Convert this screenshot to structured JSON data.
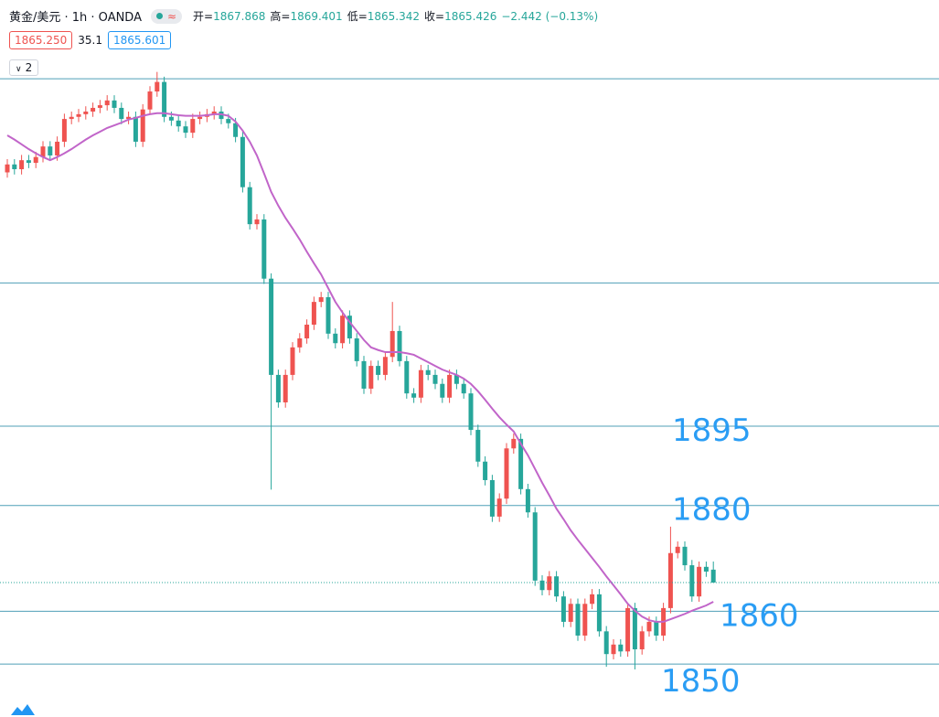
{
  "header": {
    "symbol": "黄金/美元 · 1h · OANDA",
    "icon": "≈",
    "ohlc": [
      {
        "label": "开=",
        "value": "1867.868"
      },
      {
        "label": "高=",
        "value": "1869.401"
      },
      {
        "label": "低=",
        "value": "1865.342"
      },
      {
        "label": "收=",
        "value": "1865.426"
      }
    ],
    "change": "−2.442 (−0.13%)",
    "bid": "1865.250",
    "spread": "35.1",
    "ask": "1865.601",
    "collapse": "2"
  },
  "chart_data": {
    "type": "candlestick",
    "up_color": "#ef5350",
    "down_color": "#26a69a",
    "ylim": [
      1840,
      1975.6
    ],
    "open": [
      1943.0,
      1944.5,
      1943.6,
      1945.3,
      1944.8,
      1945.9,
      1947.9,
      1946.2,
      1948.8,
      1953.1,
      1953.5,
      1954.0,
      1954.5,
      1955.2,
      1955.7,
      1956.6,
      1955.2,
      1953.1,
      1953.5,
      1948.8,
      1954.9,
      1958.3,
      1960.1,
      1953.5,
      1952.8,
      1951.7,
      1950.5,
      1953.1,
      1953.5,
      1954.0,
      1954.5,
      1953.1,
      1952.3,
      1949.7,
      1940.2,
      1933.2,
      1934.1,
      1922.9,
      1904.7,
      1899.5,
      1904.7,
      1909.9,
      1911.6,
      1914.2,
      1918.5,
      1919.4,
      1912.5,
      1910.7,
      1915.9,
      1911.6,
      1907.3,
      1902.1,
      1906.4,
      1904.7,
      1908.1,
      1913.0,
      1907.3,
      1901.2,
      1900.4,
      1905.6,
      1904.7,
      1903.0,
      1900.4,
      1904.7,
      1903.0,
      1901.2,
      1894.3,
      1888.3,
      1884.8,
      1877.9,
      1881.3,
      1890.8,
      1892.6,
      1883.1,
      1878.7,
      1865.8,
      1864.0,
      1866.6,
      1862.8,
      1858.0,
      1861.4,
      1855.4,
      1861.4,
      1863.2,
      1856.2,
      1851.9,
      1853.7,
      1852.4,
      1860.6,
      1852.8,
      1856.2,
      1858.0,
      1855.4,
      1860.6,
      1871.0,
      1872.2,
      1868.7,
      1862.8,
      1868.4,
      1867.868
    ],
    "high": [
      1945.5,
      1945.5,
      1946.3,
      1946.3,
      1946.9,
      1948.9,
      1948.9,
      1949.8,
      1954.1,
      1954.5,
      1955.0,
      1955.5,
      1956.2,
      1956.7,
      1957.6,
      1957.6,
      1956.2,
      1954.5,
      1954.5,
      1955.9,
      1959.3,
      1962.0,
      1961.1,
      1954.5,
      1953.8,
      1952.7,
      1954.1,
      1954.5,
      1955.0,
      1955.5,
      1955.5,
      1954.1,
      1953.3,
      1950.7,
      1941.2,
      1935.1,
      1935.1,
      1923.9,
      1905.7,
      1905.7,
      1910.9,
      1912.6,
      1915.2,
      1919.5,
      1920.4,
      1920.4,
      1913.5,
      1916.9,
      1916.9,
      1912.6,
      1908.3,
      1907.4,
      1907.4,
      1909.1,
      1918.5,
      1914.0,
      1908.3,
      1902.2,
      1906.6,
      1906.6,
      1905.7,
      1904.0,
      1905.7,
      1905.7,
      1904.0,
      1902.2,
      1895.3,
      1889.3,
      1885.8,
      1882.3,
      1891.8,
      1893.6,
      1893.6,
      1884.1,
      1879.7,
      1866.8,
      1867.6,
      1867.6,
      1863.8,
      1862.4,
      1862.4,
      1862.4,
      1864.2,
      1864.2,
      1857.2,
      1854.7,
      1854.7,
      1861.6,
      1861.6,
      1857.2,
      1859.0,
      1859.0,
      1861.6,
      1876.0,
      1873.2,
      1873.2,
      1869.7,
      1869.4,
      1869.4,
      1869.401
    ],
    "low": [
      1942.0,
      1942.6,
      1942.6,
      1943.8,
      1943.8,
      1944.9,
      1945.2,
      1945.2,
      1947.8,
      1952.1,
      1952.5,
      1953.0,
      1953.5,
      1954.2,
      1954.7,
      1954.2,
      1952.1,
      1952.1,
      1947.8,
      1947.8,
      1953.9,
      1957.3,
      1952.5,
      1951.8,
      1950.7,
      1949.5,
      1949.5,
      1952.1,
      1952.5,
      1953.0,
      1952.1,
      1951.3,
      1948.7,
      1939.2,
      1932.2,
      1932.2,
      1921.9,
      1883.0,
      1898.5,
      1898.5,
      1903.7,
      1908.9,
      1910.6,
      1913.2,
      1917.5,
      1911.5,
      1909.7,
      1909.7,
      1910.6,
      1906.3,
      1901.1,
      1901.1,
      1903.7,
      1903.7,
      1907.1,
      1906.3,
      1900.2,
      1899.4,
      1899.4,
      1903.7,
      1902.0,
      1899.4,
      1899.4,
      1902.0,
      1900.2,
      1893.3,
      1887.3,
      1883.8,
      1876.9,
      1876.9,
      1880.3,
      1889.8,
      1882.1,
      1877.7,
      1864.8,
      1863.0,
      1863.0,
      1861.8,
      1857.0,
      1857.0,
      1854.4,
      1854.4,
      1860.4,
      1855.2,
      1849.5,
      1850.9,
      1851.4,
      1851.4,
      1849.0,
      1851.8,
      1855.2,
      1854.4,
      1854.4,
      1859.6,
      1870.0,
      1867.7,
      1861.8,
      1861.8,
      1866.5,
      1865.342
    ],
    "close": [
      1944.5,
      1943.6,
      1945.3,
      1944.8,
      1945.9,
      1947.9,
      1946.2,
      1948.8,
      1953.1,
      1953.5,
      1954.0,
      1954.5,
      1955.2,
      1955.7,
      1956.6,
      1955.2,
      1953.1,
      1953.5,
      1948.8,
      1954.9,
      1958.3,
      1960.1,
      1953.5,
      1952.8,
      1951.7,
      1950.5,
      1953.1,
      1953.5,
      1954.0,
      1954.5,
      1953.1,
      1952.3,
      1949.7,
      1940.2,
      1933.2,
      1934.1,
      1922.9,
      1904.7,
      1899.5,
      1904.7,
      1909.9,
      1911.6,
      1914.2,
      1918.5,
      1919.4,
      1912.5,
      1910.7,
      1915.9,
      1911.6,
      1907.3,
      1902.1,
      1906.4,
      1904.7,
      1908.1,
      1913.0,
      1907.3,
      1901.2,
      1900.4,
      1905.6,
      1904.7,
      1903.0,
      1900.4,
      1904.7,
      1903.0,
      1901.2,
      1894.3,
      1888.3,
      1884.8,
      1877.9,
      1881.3,
      1890.8,
      1892.6,
      1883.1,
      1878.7,
      1865.8,
      1864.0,
      1866.6,
      1862.8,
      1858.0,
      1861.4,
      1855.4,
      1861.4,
      1863.2,
      1856.2,
      1851.9,
      1853.7,
      1852.4,
      1860.6,
      1852.8,
      1856.2,
      1858.0,
      1855.4,
      1860.6,
      1871.0,
      1872.2,
      1868.7,
      1862.8,
      1868.4,
      1867.5,
      1865.426
    ],
    "ma": {
      "color": "#c165c9",
      "values": [
        1950.0,
        1949.2,
        1948.3,
        1947.4,
        1946.6,
        1945.9,
        1945.3,
        1945.9,
        1946.6,
        1947.4,
        1948.3,
        1949.2,
        1950.0,
        1950.7,
        1951.4,
        1951.9,
        1952.4,
        1953.0,
        1953.3,
        1953.7,
        1954.0,
        1954.2,
        1954.2,
        1954.0,
        1953.8,
        1953.7,
        1953.7,
        1953.7,
        1953.8,
        1954.0,
        1954.0,
        1953.7,
        1952.6,
        1950.9,
        1948.8,
        1946.2,
        1942.8,
        1939.3,
        1936.7,
        1934.4,
        1932.4,
        1930.3,
        1928.0,
        1925.8,
        1923.7,
        1921.1,
        1918.5,
        1916.5,
        1914.7,
        1913.0,
        1911.3,
        1909.9,
        1909.4,
        1909.0,
        1909.0,
        1909.0,
        1908.8,
        1908.5,
        1907.8,
        1907.1,
        1906.4,
        1905.7,
        1905.2,
        1904.7,
        1904.0,
        1903.0,
        1901.6,
        1900.0,
        1898.3,
        1896.7,
        1895.3,
        1894.0,
        1891.7,
        1889.5,
        1886.9,
        1884.3,
        1881.9,
        1879.4,
        1877.4,
        1875.3,
        1873.5,
        1871.8,
        1870.1,
        1868.4,
        1866.6,
        1864.9,
        1863.2,
        1861.4,
        1860.1,
        1859.0,
        1858.3,
        1858.0,
        1858.0,
        1858.5,
        1859.0,
        1859.5,
        1860.1,
        1860.6,
        1861.1,
        1861.8
      ]
    },
    "line_color": "#4f9fb7",
    "lines": [
      1960.7,
      1922.1
    ],
    "levels": [
      {
        "value": 1895,
        "label": "1895"
      },
      {
        "value": 1880,
        "label": "1880"
      },
      {
        "value": 1860,
        "label": "1860"
      },
      {
        "value": 1850,
        "label": "1850"
      }
    ],
    "last_price_line": true
  }
}
